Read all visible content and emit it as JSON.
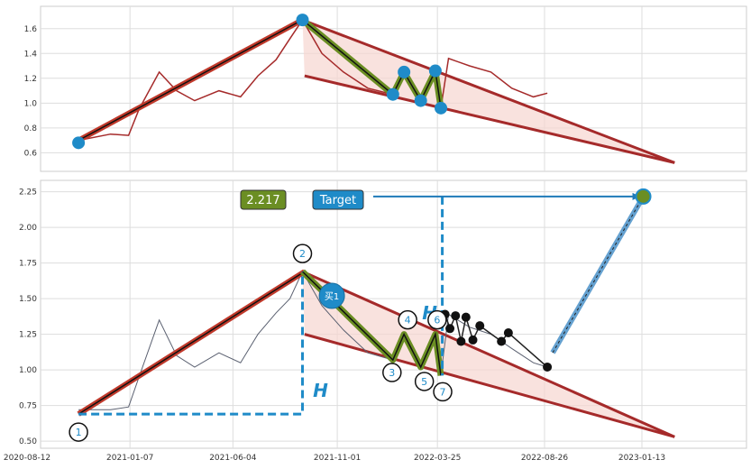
{
  "chart_data": [
    {
      "type": "line",
      "panel": "top",
      "ylim": [
        0.45,
        1.78
      ],
      "y_ticks": [
        "0.6",
        "0.8",
        "1.0",
        "1.2",
        "1.4",
        "1.6"
      ],
      "grid": true,
      "colors": {
        "price": "#a52a2a",
        "trend": "#c0392b",
        "wave": "#6b8e23",
        "point": "#1f8bc8",
        "fill": "#f6d6d0"
      },
      "trendline_upper": {
        "x": [
          "2020-10-25",
          "2021-09-15"
        ],
        "y": [
          0.7,
          1.68
        ]
      },
      "trendline_lower": {
        "x": [
          "2021-09-15",
          "2023-03-01"
        ],
        "y": [
          1.22,
          0.52
        ]
      },
      "wave_points": [
        {
          "x": "2020-10-25",
          "y": 0.68
        },
        {
          "x": "2021-09-12",
          "y": 1.67
        },
        {
          "x": "2022-01-20",
          "y": 1.07
        },
        {
          "x": "2022-02-05",
          "y": 1.25
        },
        {
          "x": "2022-03-01",
          "y": 1.02
        },
        {
          "x": "2022-03-22",
          "y": 1.26
        },
        {
          "x": "2022-03-30",
          "y": 0.96
        }
      ],
      "price_points": [
        {
          "x": "2020-10-25",
          "y": 0.7
        },
        {
          "x": "2020-12-10",
          "y": 0.75
        },
        {
          "x": "2021-01-05",
          "y": 0.74
        },
        {
          "x": "2021-01-20",
          "y": 0.95
        },
        {
          "x": "2021-02-18",
          "y": 1.25
        },
        {
          "x": "2021-03-15",
          "y": 1.1
        },
        {
          "x": "2021-04-10",
          "y": 1.02
        },
        {
          "x": "2021-05-15",
          "y": 1.1
        },
        {
          "x": "2021-06-15",
          "y": 1.05
        },
        {
          "x": "2021-07-10",
          "y": 1.22
        },
        {
          "x": "2021-08-05",
          "y": 1.35
        },
        {
          "x": "2021-08-25",
          "y": 1.52
        },
        {
          "x": "2021-09-12",
          "y": 1.67
        },
        {
          "x": "2021-10-10",
          "y": 1.4
        },
        {
          "x": "2021-11-10",
          "y": 1.25
        },
        {
          "x": "2021-12-15",
          "y": 1.12
        },
        {
          "x": "2022-01-20",
          "y": 1.07
        },
        {
          "x": "2022-02-05",
          "y": 1.25
        },
        {
          "x": "2022-03-01",
          "y": 1.02
        },
        {
          "x": "2022-03-22",
          "y": 1.26
        },
        {
          "x": "2022-03-30",
          "y": 0.96
        },
        {
          "x": "2022-04-10",
          "y": 1.36
        },
        {
          "x": "2022-05-10",
          "y": 1.3
        },
        {
          "x": "2022-06-10",
          "y": 1.25
        },
        {
          "x": "2022-07-10",
          "y": 1.12
        },
        {
          "x": "2022-08-10",
          "y": 1.05
        },
        {
          "x": "2022-08-30",
          "y": 1.08
        }
      ]
    },
    {
      "type": "line",
      "panel": "bottom",
      "x_ticks": [
        "2020-08-12",
        "2021-01-07",
        "2021-06-04",
        "2021-11-01",
        "2022-03-25",
        "2022-08-26",
        "2023-01-13"
      ],
      "y_ticks": [
        "0.50",
        "0.75",
        "1.00",
        "1.25",
        "1.50",
        "1.75",
        "2.00",
        "2.25"
      ],
      "ylim": [
        0.45,
        2.33
      ],
      "grid": true,
      "target_value": "2.217",
      "target_label": "Target",
      "buy_label": "买1",
      "h_label": "H",
      "trendline_upper": {
        "x": [
          "2020-10-25",
          "2021-09-15"
        ],
        "y": [
          0.69,
          1.69
        ]
      },
      "trendline_lower": {
        "x": [
          "2021-09-15",
          "2023-03-01"
        ],
        "y": [
          1.25,
          0.53
        ]
      },
      "wave_points": [
        {
          "n": "1",
          "x": "2020-10-25",
          "y": 0.69
        },
        {
          "n": "2",
          "x": "2021-09-12",
          "y": 1.69
        },
        {
          "n": "3",
          "x": "2022-01-20",
          "y": 1.07
        },
        {
          "n": "4",
          "x": "2022-02-05",
          "y": 1.25
        },
        {
          "n": "5",
          "x": "2022-03-01",
          "y": 1.02
        },
        {
          "n": "6",
          "x": "2022-03-22",
          "y": 1.25
        },
        {
          "n": "7",
          "x": "2022-03-30",
          "y": 0.96
        }
      ],
      "buy_point": {
        "x": "2021-11-01",
        "y": 1.52
      },
      "target_point": {
        "x": "2023-01-15",
        "y": 2.217
      },
      "recent_points": [
        {
          "x": "2022-04-05",
          "y": 1.39
        },
        {
          "x": "2022-04-12",
          "y": 1.29
        },
        {
          "x": "2022-04-20",
          "y": 1.38
        },
        {
          "x": "2022-04-28",
          "y": 1.2
        },
        {
          "x": "2022-05-05",
          "y": 1.37
        },
        {
          "x": "2022-05-15",
          "y": 1.21
        },
        {
          "x": "2022-05-25",
          "y": 1.31
        },
        {
          "x": "2022-06-25",
          "y": 1.2
        },
        {
          "x": "2022-07-05",
          "y": 1.26
        },
        {
          "x": "2022-08-30",
          "y": 1.02
        }
      ],
      "price_points": [
        {
          "x": "2020-10-25",
          "y": 0.72
        },
        {
          "x": "2020-12-10",
          "y": 0.72
        },
        {
          "x": "2021-01-05",
          "y": 0.74
        },
        {
          "x": "2021-01-20",
          "y": 0.95
        },
        {
          "x": "2021-02-18",
          "y": 1.35
        },
        {
          "x": "2021-03-15",
          "y": 1.1
        },
        {
          "x": "2021-04-10",
          "y": 1.02
        },
        {
          "x": "2021-05-15",
          "y": 1.12
        },
        {
          "x": "2021-06-15",
          "y": 1.05
        },
        {
          "x": "2021-07-10",
          "y": 1.25
        },
        {
          "x": "2021-08-05",
          "y": 1.4
        },
        {
          "x": "2021-08-25",
          "y": 1.5
        },
        {
          "x": "2021-09-12",
          "y": 1.69
        },
        {
          "x": "2021-10-10",
          "y": 1.45
        },
        {
          "x": "2021-11-10",
          "y": 1.28
        },
        {
          "x": "2021-12-15",
          "y": 1.12
        },
        {
          "x": "2022-01-20",
          "y": 1.07
        },
        {
          "x": "2022-02-05",
          "y": 1.25
        },
        {
          "x": "2022-03-01",
          "y": 1.02
        },
        {
          "x": "2022-03-22",
          "y": 1.25
        },
        {
          "x": "2022-03-30",
          "y": 0.96
        },
        {
          "x": "2022-04-10",
          "y": 1.39
        },
        {
          "x": "2022-05-10",
          "y": 1.3
        },
        {
          "x": "2022-06-10",
          "y": 1.25
        },
        {
          "x": "2022-07-10",
          "y": 1.15
        },
        {
          "x": "2022-08-10",
          "y": 1.05
        },
        {
          "x": "2022-08-30",
          "y": 1.02
        }
      ]
    }
  ]
}
